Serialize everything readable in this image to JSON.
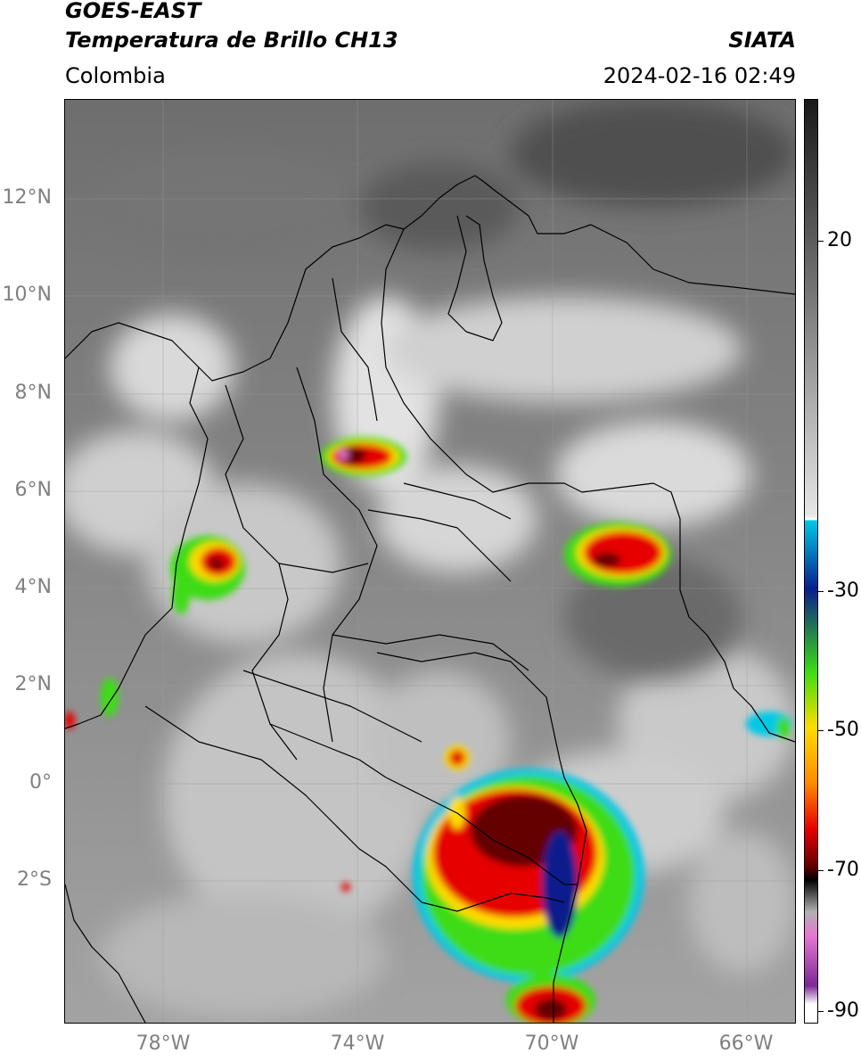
{
  "header": {
    "satellite": "GOES-EAST",
    "product": "Temperatura de Brillo CH13",
    "organization": "SIATA",
    "region": "Colombia",
    "datetime": "2024-02-16 02:49"
  },
  "map": {
    "lat_labels": [
      "12°N",
      "10°N",
      "8°N",
      "6°N",
      "4°N",
      "2°N",
      "0°",
      "2°S"
    ],
    "lon_labels": [
      "78°W",
      "74°W",
      "70°W",
      "66°W"
    ],
    "lat_range": [
      -5.0,
      14.0
    ],
    "lon_range": [
      -80.0,
      -65.0
    ],
    "colorbar": {
      "labels": [
        "20",
        "-30",
        "-50",
        "-70",
        "-90"
      ],
      "colors": {
        "warm_dark": "#1a1a1a",
        "gray_mid": "#7a7a7a",
        "gray_light": "#e6e6e6",
        "cyan": "#00c8e6",
        "blue": "#0a1e8c",
        "green": "#3cdc14",
        "yellow": "#ffdc00",
        "orange": "#ff8c00",
        "red": "#e60000",
        "dark_red": "#640000",
        "pink": "#e678d2",
        "purple": "#7d2896"
      }
    }
  }
}
